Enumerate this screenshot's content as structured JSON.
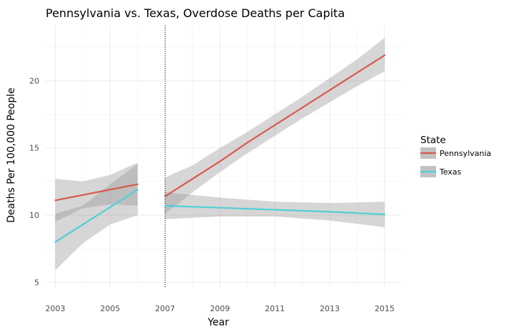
{
  "chart_data": {
    "type": "line",
    "title": "Pennsylvania vs. Texas, Overdose Deaths per Capita",
    "xlabel": "Year",
    "ylabel": "Deaths Per 100,000 People",
    "xlim": [
      2002.65,
      2015.6
    ],
    "ylim": [
      4.6,
      24.1
    ],
    "x_ticks": [
      2003,
      2005,
      2007,
      2009,
      2011,
      2013,
      2015
    ],
    "y_ticks": [
      5,
      10,
      15,
      20
    ],
    "grid": true,
    "cutoff_x": 2007,
    "legend": {
      "title": "State",
      "placement": "right",
      "entries": [
        "Pennsylvania",
        "Texas"
      ]
    },
    "series": [
      {
        "name": "Pennsylvania",
        "color": "#d9594c",
        "segments": [
          {
            "x": [
              2003,
              2004,
              2005,
              2006
            ],
            "y": [
              11.1,
              11.5,
              11.9,
              12.3
            ],
            "lower": [
              9.5,
              10.5,
              10.8,
              10.7
            ],
            "upper": [
              12.7,
              12.5,
              13.0,
              13.9
            ]
          },
          {
            "x": [
              2007,
              2008,
              2009,
              2010,
              2011,
              2012,
              2013,
              2014,
              2015
            ],
            "y": [
              11.4,
              12.7,
              14.0,
              15.4,
              16.7,
              18.0,
              19.3,
              20.6,
              21.9
            ],
            "lower": [
              10.1,
              11.7,
              13.2,
              14.6,
              15.9,
              17.2,
              18.4,
              19.6,
              20.7
            ],
            "upper": [
              12.8,
              13.7,
              15.0,
              16.2,
              17.5,
              18.8,
              20.2,
              21.6,
              23.2
            ]
          }
        ]
      },
      {
        "name": "Texas",
        "color": "#4fcfd6",
        "segments": [
          {
            "x": [
              2003,
              2004,
              2005,
              2006
            ],
            "y": [
              8.0,
              9.3,
              10.6,
              11.9
            ],
            "lower": [
              5.9,
              7.9,
              9.3,
              10.0
            ],
            "upper": [
              10.1,
              10.7,
              12.3,
              13.8
            ]
          },
          {
            "x": [
              2007,
              2009,
              2011,
              2013,
              2015
            ],
            "y": [
              10.7,
              10.55,
              10.4,
              10.25,
              10.05
            ],
            "lower": [
              9.7,
              9.9,
              9.9,
              9.6,
              9.1
            ],
            "upper": [
              11.7,
              11.3,
              11.0,
              10.9,
              11.0
            ]
          }
        ]
      }
    ]
  }
}
